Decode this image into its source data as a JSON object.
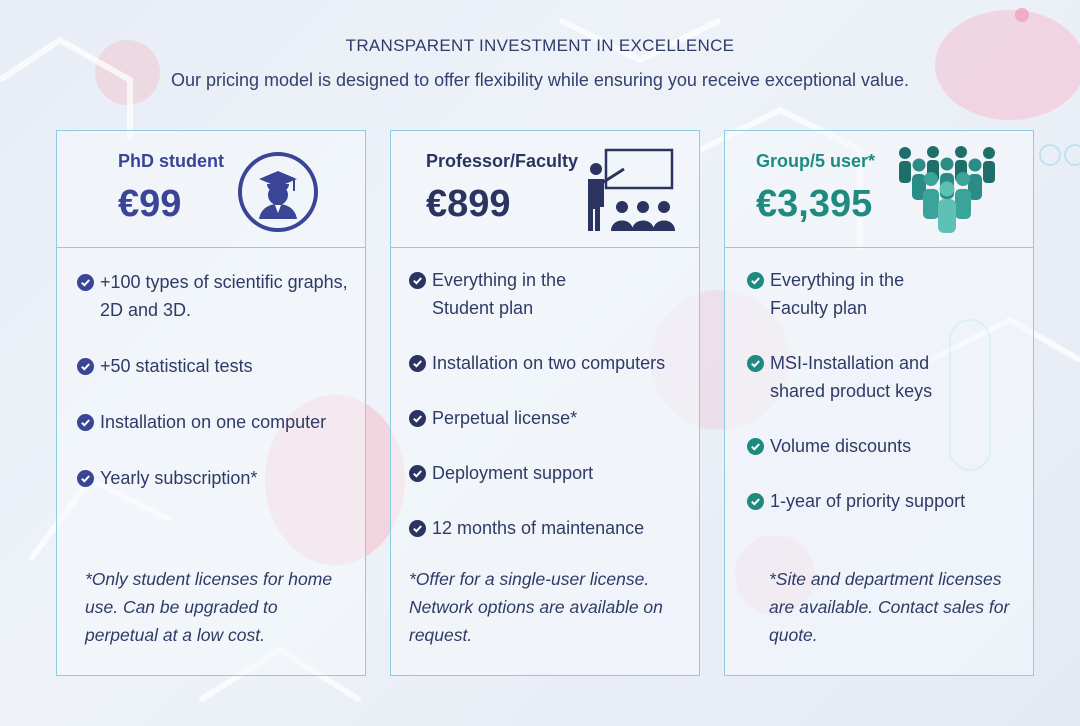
{
  "header": {
    "eyebrow": "TRANSPARENT INVESTMENT IN EXCELLENCE",
    "subtitle": "Our pricing model is designed to offer flexibility while ensuring you receive exceptional value."
  },
  "colors": {
    "student_accent": "#3b4598",
    "faculty_accent": "#2b3460",
    "group_accent": "#1f8a80"
  },
  "plans": [
    {
      "name": "PhD student",
      "price": "€99",
      "icon": "graduate-icon",
      "features": [
        "+100 types of scientific graphs, 2D and 3D.",
        "+50 statistical tests",
        "Installation on one computer",
        "Yearly subscription*"
      ],
      "note": "*Only student licenses for home use. Can be upgraded to perpetual at a low cost."
    },
    {
      "name": "Professor/Faculty",
      "price": "€899",
      "icon": "presentation-icon",
      "features": [
        "Everything in the Student plan",
        "Installation on two computers",
        "Perpetual license*",
        "Deployment support",
        "12 months of maintenance"
      ],
      "note": "*Offer for a single-user license. Network options are available on request."
    },
    {
      "name": "Group/5 user*",
      "price": "€3,395",
      "icon": "group-icon",
      "features": [
        "Everything in the Faculty plan",
        "MSI-Installation and shared product keys",
        "Volume discounts",
        "1-year of priority support"
      ],
      "note": "*Site and department licenses are available. Contact sales for quote."
    }
  ]
}
